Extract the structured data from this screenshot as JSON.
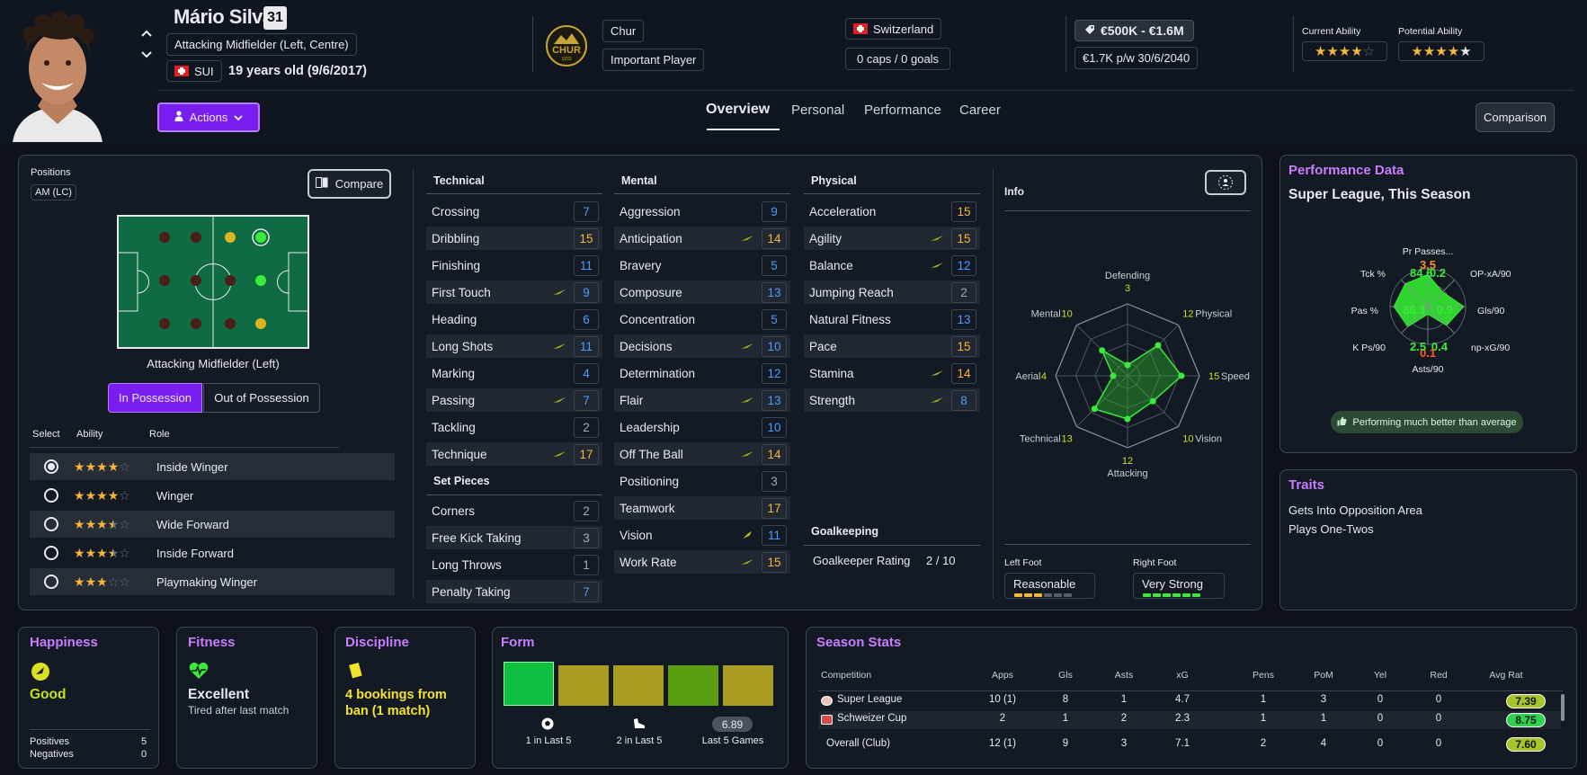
{
  "player": {
    "name": "Mário Silva",
    "number": "31",
    "position": "Attacking Midfielder (Left, Centre)",
    "nationality_code": "SUI",
    "age": "19 years old (9/6/2017)",
    "club": "Chur",
    "squad_status": "Important Player",
    "nation": "Switzerland",
    "caps": "0 caps / 0 goals",
    "value": "€500K - €1.6M",
    "wage": "€1.7K p/w 30/6/2040",
    "current_ability_label": "Current Ability",
    "potential_ability_label": "Potential Ability",
    "current_ability_stars": 4,
    "potential_ability_stars": 5,
    "club_crest_text": "CHUR",
    "club_crest_year": "1933"
  },
  "header": {
    "actions_label": "Actions",
    "tabs": [
      "Overview",
      "Personal",
      "Performance",
      "Career"
    ],
    "active_tab": "Overview",
    "comparison_label": "Comparison"
  },
  "positions": {
    "title": "Positions",
    "badge": "AM (LC)",
    "compare_label": "Compare",
    "selected_position": "Attacking Midfielder (Left)",
    "in_possession": "In Possession",
    "out_of_possession": "Out of Possession",
    "col_select": "Select",
    "col_ability": "Ability",
    "col_role": "Role",
    "roles": [
      {
        "name": "Inside Winger",
        "stars": 4,
        "selected": true
      },
      {
        "name": "Winger",
        "stars": 4,
        "selected": false
      },
      {
        "name": "Wide Forward",
        "stars": 3.5,
        "selected": false
      },
      {
        "name": "Inside Forward",
        "stars": 3.5,
        "selected": false
      },
      {
        "name": "Playmaking Winger",
        "stars": 3,
        "selected": false
      }
    ]
  },
  "attributes": {
    "technical_title": "Technical",
    "technical": [
      {
        "name": "Crossing",
        "value": "7",
        "color": "blue",
        "trend": ""
      },
      {
        "name": "Dribbling",
        "value": "15",
        "color": "gold",
        "trend": ""
      },
      {
        "name": "Finishing",
        "value": "11",
        "color": "blue",
        "trend": ""
      },
      {
        "name": "First Touch",
        "value": "9",
        "color": "blue",
        "trend": "up"
      },
      {
        "name": "Heading",
        "value": "6",
        "color": "blue",
        "trend": ""
      },
      {
        "name": "Long Shots",
        "value": "11",
        "color": "blue",
        "trend": "up"
      },
      {
        "name": "Marking",
        "value": "4",
        "color": "blue",
        "trend": ""
      },
      {
        "name": "Passing",
        "value": "7",
        "color": "blue",
        "trend": "up"
      },
      {
        "name": "Tackling",
        "value": "2",
        "color": "grey",
        "trend": ""
      },
      {
        "name": "Technique",
        "value": "17",
        "color": "gold",
        "trend": "up"
      }
    ],
    "set_pieces_title": "Set Pieces",
    "set_pieces": [
      {
        "name": "Corners",
        "value": "2",
        "color": "grey",
        "trend": ""
      },
      {
        "name": "Free Kick Taking",
        "value": "3",
        "color": "grey",
        "trend": ""
      },
      {
        "name": "Long Throws",
        "value": "1",
        "color": "grey",
        "trend": ""
      },
      {
        "name": "Penalty Taking",
        "value": "7",
        "color": "blue",
        "trend": ""
      }
    ],
    "mental_title": "Mental",
    "mental": [
      {
        "name": "Aggression",
        "value": "9",
        "color": "blue",
        "trend": ""
      },
      {
        "name": "Anticipation",
        "value": "14",
        "color": "gold",
        "trend": "up"
      },
      {
        "name": "Bravery",
        "value": "5",
        "color": "blue",
        "trend": ""
      },
      {
        "name": "Composure",
        "value": "13",
        "color": "blue",
        "trend": ""
      },
      {
        "name": "Concentration",
        "value": "5",
        "color": "blue",
        "trend": ""
      },
      {
        "name": "Decisions",
        "value": "10",
        "color": "blue",
        "trend": "up"
      },
      {
        "name": "Determination",
        "value": "12",
        "color": "blue",
        "trend": ""
      },
      {
        "name": "Flair",
        "value": "13",
        "color": "blue",
        "trend": "up"
      },
      {
        "name": "Leadership",
        "value": "10",
        "color": "blue",
        "trend": ""
      },
      {
        "name": "Off The Ball",
        "value": "14",
        "color": "gold",
        "trend": "up"
      },
      {
        "name": "Positioning",
        "value": "3",
        "color": "grey",
        "trend": ""
      },
      {
        "name": "Teamwork",
        "value": "17",
        "color": "gold",
        "trend": ""
      },
      {
        "name": "Vision",
        "value": "11",
        "color": "blue",
        "trend": "upfast"
      },
      {
        "name": "Work Rate",
        "value": "15",
        "color": "gold",
        "trend": "up"
      }
    ],
    "physical_title": "Physical",
    "physical": [
      {
        "name": "Acceleration",
        "value": "15",
        "color": "gold",
        "trend": ""
      },
      {
        "name": "Agility",
        "value": "15",
        "color": "gold",
        "trend": "up"
      },
      {
        "name": "Balance",
        "value": "12",
        "color": "blue",
        "trend": "up"
      },
      {
        "name": "Jumping Reach",
        "value": "2",
        "color": "grey",
        "trend": ""
      },
      {
        "name": "Natural Fitness",
        "value": "13",
        "color": "blue",
        "trend": ""
      },
      {
        "name": "Pace",
        "value": "15",
        "color": "gold",
        "trend": ""
      },
      {
        "name": "Stamina",
        "value": "14",
        "color": "gold",
        "trend": "up"
      },
      {
        "name": "Strength",
        "value": "8",
        "color": "blue",
        "trend": "up"
      }
    ],
    "goalkeeping_title": "Goalkeeping",
    "goalkeeper_rating_label": "Goalkeeper Rating",
    "goalkeeper_rating": "2 / 10"
  },
  "info": {
    "title": "Info",
    "radar": [
      {
        "label": "Defending",
        "value": 3
      },
      {
        "label": "Physical",
        "value": 12
      },
      {
        "label": "Speed",
        "value": 15
      },
      {
        "label": "Vision",
        "value": 10
      },
      {
        "label": "Attacking",
        "value": 12
      },
      {
        "label": "Technical",
        "value": 13
      },
      {
        "label": "Aerial",
        "value": 4
      },
      {
        "label": "Mental",
        "value": 10
      }
    ],
    "left_foot_label": "Left Foot",
    "left_foot": "Reasonable",
    "left_foot_level": 3,
    "right_foot_label": "Right Foot",
    "right_foot": "Very Strong",
    "right_foot_level": 6
  },
  "performance": {
    "title": "Performance Data",
    "subtitle": "Super League, This Season",
    "metrics": [
      {
        "label": "Pr Passes...",
        "value": "3.5",
        "color": "#ff8a2a"
      },
      {
        "label": "OP-xA/90",
        "value": "0.2",
        "color": "#3bea3b"
      },
      {
        "label": "Gls/90",
        "value": "0.9",
        "color": "#3bea3b"
      },
      {
        "label": "np-xG/90",
        "value": "0.4",
        "color": "#3bea3b"
      },
      {
        "label": "Asts/90",
        "value": "0.1",
        "color": "#ff5a2a"
      },
      {
        "label": "K Ps/90",
        "value": "2.5",
        "color": "#3bea3b"
      },
      {
        "label": "Pas %",
        "value": "86.3",
        "color": "#3bea3b"
      },
      {
        "label": "Tck %",
        "value": "84.6",
        "color": "#3bea3b"
      }
    ],
    "badge": "Performing much better than average"
  },
  "traits": {
    "title": "Traits",
    "items": [
      "Gets Into Opposition Area",
      "Plays One-Twos"
    ]
  },
  "happiness": {
    "title": "Happiness",
    "value": "Good",
    "positives_label": "Positives",
    "positives": "5",
    "negatives_label": "Negatives",
    "negatives": "0"
  },
  "fitness": {
    "title": "Fitness",
    "value": "Excellent",
    "detail": "Tired after last match"
  },
  "discipline": {
    "title": "Discipline",
    "value": "4 bookings from ban (1 match)"
  },
  "form": {
    "title": "Form",
    "bars": [
      "#0fbf3f",
      "#a89d22",
      "#a89d22",
      "#5a9e12",
      "#a89d22"
    ],
    "goals_label": "1 in Last 5",
    "assists_label": "2 in Last 5",
    "rating": "6.89",
    "rating_label": "Last 5 Games"
  },
  "season_stats": {
    "title": "Season Stats",
    "headers": [
      "Competition",
      "Apps",
      "Gls",
      "Asts",
      "xG",
      "Pens",
      "PoM",
      "Yel",
      "Red",
      "Avg Rat"
    ],
    "rows": [
      {
        "competition": "Super League",
        "apps": "10 (1)",
        "gls": "8",
        "asts": "1",
        "xg": "4.7",
        "pens": "1",
        "pom": "3",
        "yel": "0",
        "red": "0",
        "rat": "7.39"
      },
      {
        "competition": "Schweizer Cup",
        "apps": "2",
        "gls": "1",
        "asts": "2",
        "xg": "2.3",
        "pens": "1",
        "pom": "1",
        "yel": "0",
        "red": "0",
        "rat": "8.75"
      },
      {
        "competition": "Overall (Club)",
        "apps": "12 (1)",
        "gls": "9",
        "asts": "3",
        "xg": "7.1",
        "pens": "2",
        "pom": "4",
        "yel": "0",
        "red": "0",
        "rat": "7.60"
      }
    ]
  }
}
